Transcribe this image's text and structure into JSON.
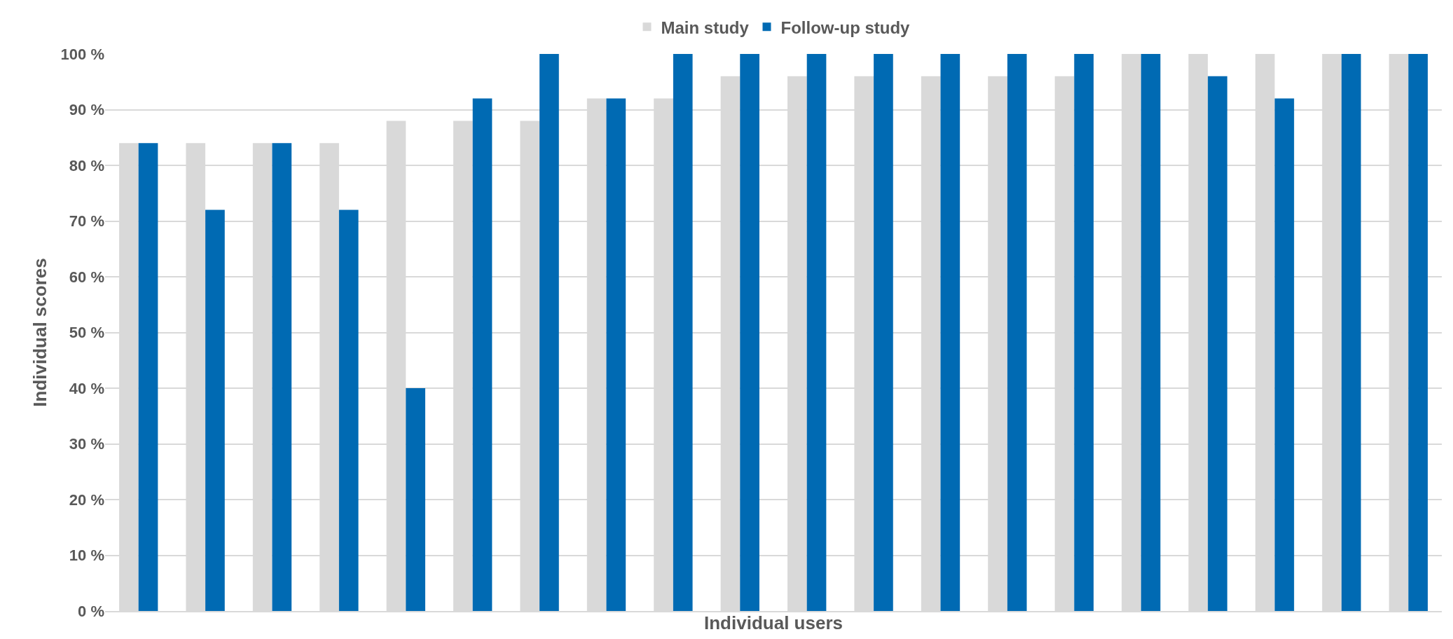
{
  "chart_data": {
    "type": "bar",
    "xlabel": "Individual users",
    "ylabel": "Individual scores",
    "categories": [
      null,
      null,
      null,
      null,
      null,
      null,
      null,
      null,
      null,
      null,
      null,
      null,
      null,
      null,
      null,
      null,
      null,
      null,
      null,
      null
    ],
    "series": [
      {
        "name": "Main study",
        "color": "#d9d9d9",
        "values": [
          84,
          84,
          84,
          84,
          88,
          88,
          88,
          92,
          92,
          96,
          96,
          96,
          96,
          96,
          96,
          100,
          100,
          100,
          100,
          100
        ]
      },
      {
        "name": "Follow-up study",
        "color": "#006ab3",
        "values": [
          84,
          72,
          84,
          72,
          40,
          92,
          100,
          92,
          100,
          100,
          100,
          100,
          100,
          100,
          100,
          100,
          96,
          92,
          100,
          100
        ]
      }
    ],
    "ylim": [
      0,
      100
    ],
    "yticks": [
      {
        "value": 0,
        "label": "0 %"
      },
      {
        "value": 10,
        "label": "10 %"
      },
      {
        "value": 20,
        "label": "20 %"
      },
      {
        "value": 30,
        "label": "30 %"
      },
      {
        "value": 40,
        "label": "40 %"
      },
      {
        "value": 50,
        "label": "50 %"
      },
      {
        "value": 60,
        "label": "60 %"
      },
      {
        "value": 70,
        "label": "70 %"
      },
      {
        "value": 80,
        "label": "80 %"
      },
      {
        "value": 90,
        "label": "90 %"
      },
      {
        "value": 100,
        "label": "100 %"
      }
    ],
    "grid": "y",
    "legend": "top",
    "tick_labels": "y"
  }
}
